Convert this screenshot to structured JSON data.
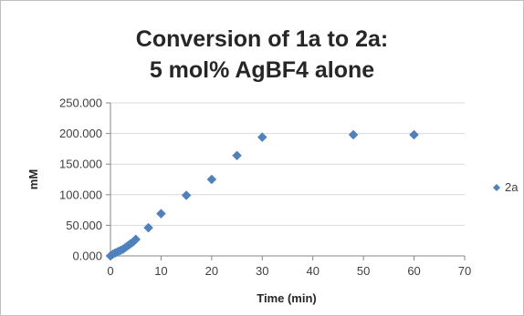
{
  "chart_data": {
    "type": "scatter",
    "title_lines": [
      "Conversion of 1a to 2a:",
      "5 mol% AgBF4 alone"
    ],
    "xlabel": "Time (min)",
    "ylabel": "mM",
    "xlim": [
      0,
      70
    ],
    "ylim": [
      0,
      250
    ],
    "x_ticks": [
      "0",
      "10",
      "20",
      "30",
      "40",
      "50",
      "60",
      "70"
    ],
    "y_ticks": [
      "0.000",
      "50.000",
      "100.000",
      "150.000",
      "200.000",
      "250.000"
    ],
    "grid": "horizontal",
    "legend_position": "right",
    "series": [
      {
        "name": "2a",
        "color": "#4F81BD",
        "marker": "diamond",
        "x": [
          0,
          0.5,
          1,
          1.5,
          2,
          2.5,
          3,
          3.5,
          4,
          4.5,
          5,
          7.5,
          10,
          15,
          20,
          25,
          30,
          48,
          60
        ],
        "y": [
          0,
          3,
          5,
          7,
          9,
          11,
          14,
          17,
          20,
          23,
          27,
          46,
          69,
          99,
          125,
          164,
          194,
          198,
          198
        ]
      }
    ]
  }
}
